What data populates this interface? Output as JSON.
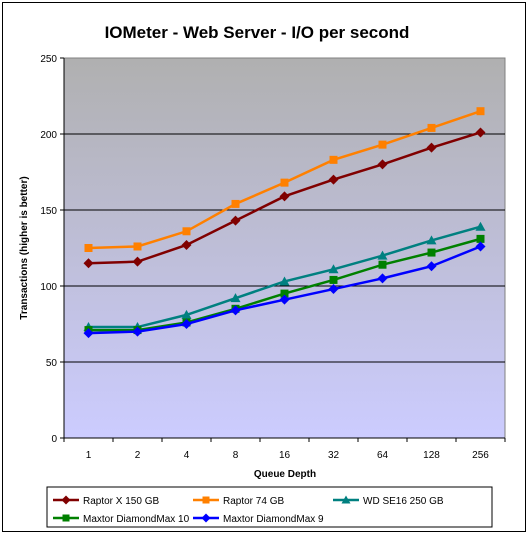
{
  "chart_data": {
    "type": "line",
    "title": "IOMeter - Web Server - I/O per second",
    "xlabel": "Queue Depth",
    "ylabel": "Transactions (higher is better)",
    "categories": [
      "1",
      "2",
      "4",
      "8",
      "16",
      "32",
      "64",
      "128",
      "256"
    ],
    "ylim": [
      0,
      250
    ],
    "yticks": [
      0,
      50,
      100,
      150,
      200,
      250
    ],
    "grid": true,
    "legend_position": "bottom",
    "series": [
      {
        "name": "Raptor X 150 GB",
        "color": "#800000",
        "marker": "diamond",
        "values": [
          115,
          116,
          127,
          143,
          159,
          170,
          180,
          191,
          201
        ]
      },
      {
        "name": "Raptor 74 GB",
        "color": "#ff8000",
        "marker": "square",
        "values": [
          125,
          126,
          136,
          154,
          168,
          183,
          193,
          204,
          215
        ]
      },
      {
        "name": "WD SE16 250 GB",
        "color": "#008080",
        "marker": "triangle",
        "values": [
          73,
          73,
          81,
          92,
          103,
          111,
          120,
          130,
          139
        ]
      },
      {
        "name": "Maxtor DiamondMax 10",
        "color": "#008000",
        "marker": "square",
        "values": [
          71,
          71,
          76,
          85,
          95,
          104,
          114,
          122,
          131
        ]
      },
      {
        "name": "Maxtor DiamondMax 9",
        "color": "#0000ff",
        "marker": "diamond",
        "values": [
          69,
          70,
          75,
          84,
          91,
          98,
          105,
          113,
          126
        ]
      }
    ]
  }
}
